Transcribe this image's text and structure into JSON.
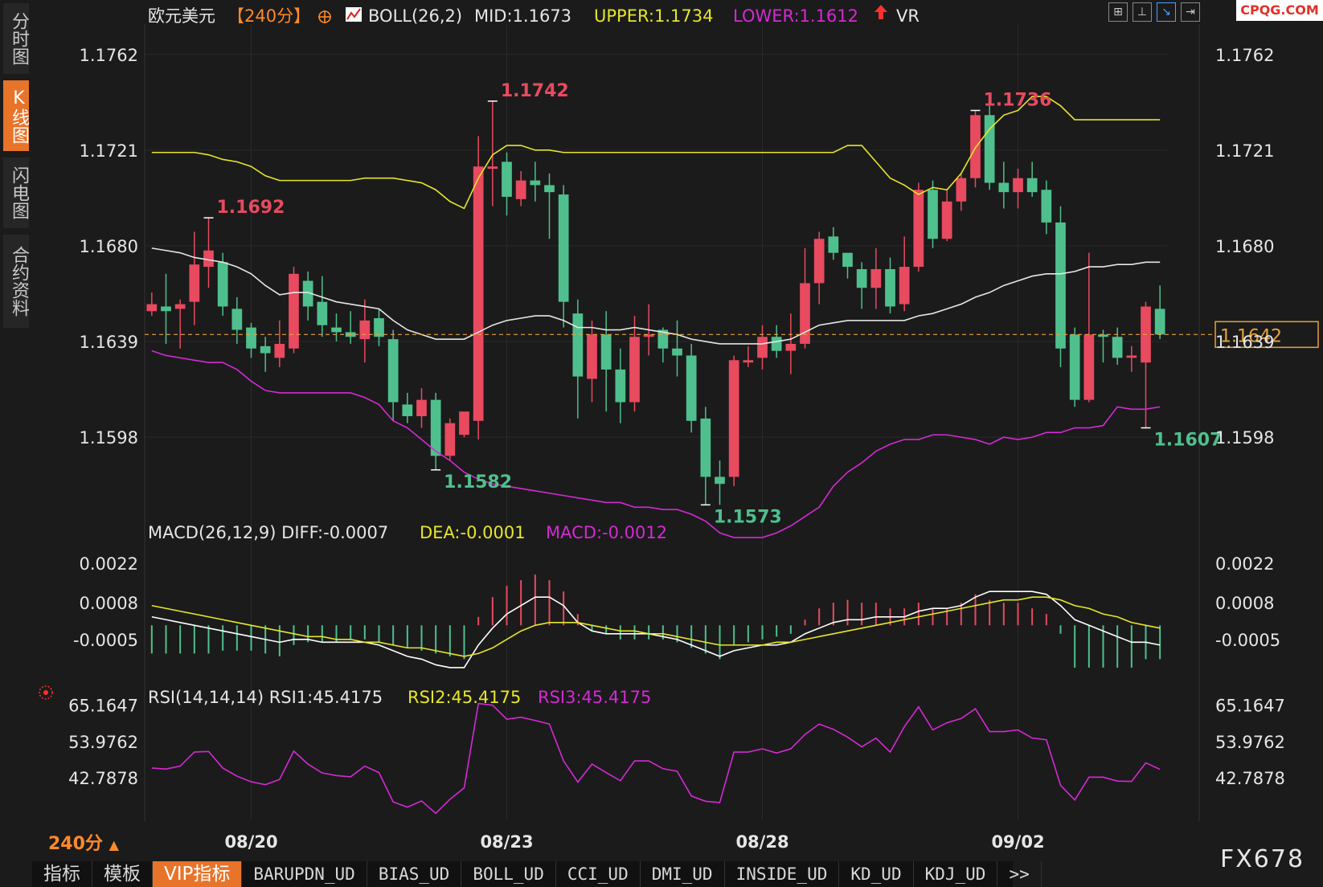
{
  "sidebar": {
    "items": [
      {
        "label": "分时图",
        "active": false
      },
      {
        "label": "K线图",
        "active": true
      },
      {
        "label": "闪电图",
        "active": false
      },
      {
        "label": "合约资料",
        "active": false
      }
    ]
  },
  "header": {
    "symbol": "欧元美元",
    "period": "【240分】",
    "boll": "BOLL(26,2)",
    "mid": "MID:1.1673",
    "upper": "UPPER:1.1734",
    "lower": "LOWER:1.1612",
    "vr": "VR"
  },
  "logo": "CPQG.COM",
  "watermark": "FX678",
  "period_footer": "240分",
  "tabs": [
    "指标",
    "模板",
    "VIP指标",
    "BARUPDN_UD",
    "BIAS_UD",
    "BOLL_UD",
    "CCI_UD",
    "DMI_UD",
    "INSIDE_UD",
    "KD_UD",
    "KDJ_UD",
    ">>"
  ],
  "colors": {
    "up": "#e84a5f",
    "down": "#4fc08d",
    "mid": "#e6e6e6",
    "upper": "#e6e62a",
    "lower": "#d42ad4",
    "accent": "#e8742a"
  },
  "chart_data": [
    {
      "type": "candlestick",
      "title": "",
      "yticks": [
        "1.1762",
        "1.1721",
        "1.1680",
        "1.1639",
        "1.1598"
      ],
      "ylim": [
        1.1565,
        1.1775
      ],
      "xticks": [
        "08/20",
        "08/23",
        "08/28",
        "09/02"
      ],
      "current_price": "1.1642",
      "annotations": [
        {
          "label": "1.1692",
          "color": "up"
        },
        {
          "label": "1.1742",
          "color": "up"
        },
        {
          "label": "1.1582",
          "color": "down"
        },
        {
          "label": "1.1573",
          "color": "down"
        },
        {
          "label": "1.1736",
          "color": "up"
        },
        {
          "label": "1.1607",
          "color": "down"
        }
      ],
      "candles": [
        [
          1.1652,
          1.1655,
          1.166,
          1.165
        ],
        [
          1.1654,
          1.1652,
          1.1668,
          1.1638
        ],
        [
          1.1653,
          1.1655,
          1.1657,
          1.1636
        ],
        [
          1.1656,
          1.1672,
          1.1686,
          1.1646
        ],
        [
          1.1671,
          1.1678,
          1.1692,
          1.1662
        ],
        [
          1.1673,
          1.1654,
          1.1677,
          1.165
        ],
        [
          1.1653,
          1.1644,
          1.1658,
          1.1638
        ],
        [
          1.1645,
          1.1636,
          1.1647,
          1.1632
        ],
        [
          1.1637,
          1.1634,
          1.1641,
          1.1626
        ],
        [
          1.1632,
          1.1638,
          1.1648,
          1.1628
        ],
        [
          1.1636,
          1.1668,
          1.1671,
          1.1634
        ],
        [
          1.1665,
          1.1654,
          1.1669,
          1.1648
        ],
        [
          1.1656,
          1.1646,
          1.1667,
          1.1641
        ],
        [
          1.1645,
          1.1643,
          1.1651,
          1.1639
        ],
        [
          1.1643,
          1.1641,
          1.1652,
          1.1638
        ],
        [
          1.164,
          1.1648,
          1.1657,
          1.163
        ],
        [
          1.1649,
          1.1641,
          1.1653,
          1.1637
        ],
        [
          1.164,
          1.1613,
          1.1644,
          1.1605
        ],
        [
          1.1612,
          1.1607,
          1.1617,
          1.1604
        ],
        [
          1.1607,
          1.1614,
          1.1619,
          1.1602
        ],
        [
          1.1614,
          1.159,
          1.1617,
          1.1584
        ],
        [
          1.159,
          1.1604,
          1.1606,
          1.1588
        ],
        [
          1.1599,
          1.1609,
          1.1608,
          1.1598
        ],
        [
          1.1605,
          1.1714,
          1.1727,
          1.1597
        ],
        [
          1.1713,
          1.1714,
          1.1742,
          1.1697
        ],
        [
          1.1716,
          1.1701,
          1.172,
          1.1693
        ],
        [
          1.17,
          1.1708,
          1.1712,
          1.1697
        ],
        [
          1.1708,
          1.1706,
          1.1716,
          1.1699
        ],
        [
          1.1706,
          1.1703,
          1.1711,
          1.1683
        ],
        [
          1.1702,
          1.1656,
          1.1706,
          1.1645
        ],
        [
          1.1651,
          1.1624,
          1.1657,
          1.1606
        ],
        [
          1.1623,
          1.1642,
          1.1648,
          1.1613
        ],
        [
          1.1642,
          1.1627,
          1.1652,
          1.1609
        ],
        [
          1.1627,
          1.1613,
          1.1636,
          1.1604
        ],
        [
          1.1613,
          1.1641,
          1.165,
          1.1609
        ],
        [
          1.1641,
          1.1642,
          1.1655,
          1.1633
        ],
        [
          1.1644,
          1.1636,
          1.1645,
          1.163
        ],
        [
          1.1636,
          1.1633,
          1.1648,
          1.1624
        ],
        [
          1.1633,
          1.1605,
          1.1638,
          1.16
        ],
        [
          1.1606,
          1.1581,
          1.1611,
          1.1569
        ],
        [
          1.1581,
          1.1578,
          1.1588,
          1.1569
        ],
        [
          1.1581,
          1.1631,
          1.1633,
          1.1577
        ],
        [
          1.163,
          1.1631,
          1.1637,
          1.1628
        ],
        [
          1.1632,
          1.1641,
          1.1646,
          1.1627
        ],
        [
          1.1641,
          1.1635,
          1.1646,
          1.1632
        ],
        [
          1.1635,
          1.1638,
          1.1651,
          1.1625
        ],
        [
          1.1638,
          1.1664,
          1.1679,
          1.1636
        ],
        [
          1.1664,
          1.1683,
          1.1686,
          1.1655
        ],
        [
          1.1684,
          1.1677,
          1.1688,
          1.1674
        ],
        [
          1.1677,
          1.1671,
          1.1676,
          1.1666
        ],
        [
          1.167,
          1.1662,
          1.1673,
          1.1653
        ],
        [
          1.1662,
          1.167,
          1.1679,
          1.1653
        ],
        [
          1.167,
          1.1654,
          1.1675,
          1.1651
        ],
        [
          1.1655,
          1.1671,
          1.1684,
          1.1652
        ],
        [
          1.1671,
          1.1704,
          1.1707,
          1.1669
        ],
        [
          1.1704,
          1.1683,
          1.1708,
          1.1679
        ],
        [
          1.1683,
          1.1699,
          1.1704,
          1.1682
        ],
        [
          1.1699,
          1.1709,
          1.1711,
          1.1695
        ],
        [
          1.1709,
          1.1736,
          1.1738,
          1.1705
        ],
        [
          1.1736,
          1.1707,
          1.174,
          1.1704
        ],
        [
          1.1707,
          1.1703,
          1.1716,
          1.1696
        ],
        [
          1.1703,
          1.1709,
          1.1713,
          1.1696
        ],
        [
          1.1709,
          1.1703,
          1.1716,
          1.1701
        ],
        [
          1.1704,
          1.169,
          1.1708,
          1.1685
        ],
        [
          1.169,
          1.1636,
          1.1697,
          1.1628
        ],
        [
          1.1642,
          1.1614,
          1.1645,
          1.1611
        ],
        [
          1.1614,
          1.1642,
          1.1677,
          1.1613
        ],
        [
          1.1642,
          1.1641,
          1.1644,
          1.163
        ],
        [
          1.1641,
          1.1632,
          1.1645,
          1.1629
        ],
        [
          1.1632,
          1.1633,
          1.1637,
          1.1626
        ],
        [
          1.163,
          1.1654,
          1.1656,
          1.1602
        ],
        [
          1.1653,
          1.1642,
          1.1663,
          1.164
        ]
      ],
      "mid_line": [
        1.1679,
        1.1678,
        1.1677,
        1.1675,
        1.1674,
        1.1673,
        1.1671,
        1.1668,
        1.1663,
        1.1659,
        1.166,
        1.166,
        1.1658,
        1.1656,
        1.1655,
        1.1654,
        1.1653,
        1.1648,
        1.1644,
        1.1642,
        1.164,
        1.164,
        1.164,
        1.1643,
        1.1646,
        1.1648,
        1.1649,
        1.165,
        1.165,
        1.1648,
        1.1645,
        1.1645,
        1.1644,
        1.1644,
        1.1645,
        1.1644,
        1.1643,
        1.1642,
        1.164,
        1.1639,
        1.1638,
        1.1638,
        1.1638,
        1.1638,
        1.1639,
        1.164,
        1.1643,
        1.1646,
        1.1647,
        1.1648,
        1.1648,
        1.1648,
        1.1648,
        1.1648,
        1.165,
        1.1651,
        1.1653,
        1.1655,
        1.1658,
        1.166,
        1.1663,
        1.1665,
        1.1667,
        1.1668,
        1.1668,
        1.1669,
        1.1671,
        1.1671,
        1.1672,
        1.1672,
        1.1673,
        1.1673
      ],
      "upper_line": [
        1.172,
        1.172,
        1.172,
        1.172,
        1.1719,
        1.1717,
        1.1716,
        1.1714,
        1.171,
        1.1708,
        1.1708,
        1.1708,
        1.1708,
        1.1708,
        1.1708,
        1.1709,
        1.1709,
        1.1709,
        1.1708,
        1.1707,
        1.1704,
        1.1699,
        1.1696,
        1.1709,
        1.1719,
        1.1723,
        1.1723,
        1.1721,
        1.1721,
        1.172,
        1.172,
        1.172,
        1.172,
        1.172,
        1.172,
        1.172,
        1.172,
        1.172,
        1.172,
        1.172,
        1.172,
        1.172,
        1.172,
        1.172,
        1.172,
        1.172,
        1.172,
        1.172,
        1.172,
        1.1723,
        1.1723,
        1.1716,
        1.1709,
        1.1706,
        1.1702,
        1.1705,
        1.1704,
        1.1711,
        1.1722,
        1.173,
        1.1736,
        1.1738,
        1.1744,
        1.1744,
        1.174,
        1.1734,
        1.1734,
        1.1734,
        1.1734,
        1.1734,
        1.1734,
        1.1734
      ],
      "lower_line": [
        1.1635,
        1.1633,
        1.1632,
        1.1631,
        1.163,
        1.163,
        1.1627,
        1.1622,
        1.1618,
        1.1617,
        1.1617,
        1.1617,
        1.1617,
        1.1617,
        1.1617,
        1.1615,
        1.1612,
        1.1605,
        1.1602,
        1.1597,
        1.1592,
        1.1588,
        1.1583,
        1.158,
        1.1578,
        1.1577,
        1.1576,
        1.1575,
        1.1574,
        1.1573,
        1.1572,
        1.1571,
        1.157,
        1.157,
        1.1568,
        1.1568,
        1.1567,
        1.1567,
        1.1565,
        1.1562,
        1.1557,
        1.1555,
        1.1555,
        1.1555,
        1.1557,
        1.156,
        1.1564,
        1.1568,
        1.1577,
        1.1583,
        1.1587,
        1.1592,
        1.1595,
        1.1597,
        1.1597,
        1.1599,
        1.1599,
        1.1598,
        1.1597,
        1.1595,
        1.1598,
        1.1597,
        1.1598,
        1.16,
        1.16,
        1.1602,
        1.1602,
        1.1603,
        1.1611,
        1.161,
        1.161,
        1.1611
      ]
    },
    {
      "type": "bar",
      "title": "MACD(26,12,9) DIFF:-0.0007",
      "dea_label": "DEA:-0.0001",
      "macd_label": "MACD:-0.0012",
      "yticks": [
        "0.0022",
        "0.0008",
        "-0.0005"
      ],
      "ylim": [
        -0.0019,
        0.0028
      ],
      "macd_bars": [
        -0.001,
        -0.001,
        -0.001,
        -0.001,
        -0.001,
        -0.0009,
        -0.0009,
        -0.0009,
        -0.001,
        -0.0011,
        -0.0007,
        -0.0006,
        -0.0006,
        -0.0006,
        -0.0005,
        -0.0005,
        -0.0006,
        -0.0007,
        -0.0008,
        -0.0009,
        -0.001,
        -0.0011,
        -0.0012,
        0.0003,
        0.001,
        0.0014,
        0.0016,
        0.0018,
        0.0016,
        0.0012,
        0.0004,
        -0.0002,
        -0.0003,
        -0.0005,
        -0.0005,
        -0.0005,
        -0.0005,
        -0.0006,
        -0.0008,
        -0.001,
        -0.0012,
        -0.0007,
        -0.0006,
        -0.0005,
        -0.0004,
        -0.0003,
        0.0002,
        0.0006,
        0.0008,
        0.0009,
        0.0008,
        0.0008,
        0.0006,
        0.0006,
        0.0008,
        0.0006,
        0.0006,
        0.0008,
        0.0011,
        0.0009,
        0.0008,
        0.0008,
        0.0006,
        0.0004,
        -0.0003,
        -0.0015,
        -0.0015,
        -0.0015,
        -0.0015,
        -0.0015,
        -0.0012,
        -0.0012
      ],
      "diff": [
        0.0003,
        0.0002,
        0.0001,
        0.0,
        -0.0001,
        -0.0002,
        -0.0003,
        -0.0004,
        -0.0005,
        -0.0006,
        -0.0005,
        -0.0005,
        -0.0006,
        -0.0006,
        -0.0006,
        -0.0006,
        -0.0007,
        -0.0009,
        -0.0011,
        -0.0012,
        -0.0014,
        -0.0015,
        -0.0015,
        -0.0007,
        -0.0001,
        0.0004,
        0.0007,
        0.001,
        0.001,
        0.0007,
        0.0001,
        -0.0002,
        -0.0003,
        -0.0003,
        -0.0003,
        -0.0003,
        -0.0004,
        -0.0005,
        -0.0007,
        -0.0009,
        -0.0011,
        -0.0009,
        -0.0008,
        -0.0007,
        -0.0007,
        -0.0006,
        -0.0003,
        -0.0001,
        0.0001,
        0.0002,
        0.0002,
        0.0003,
        0.0003,
        0.0003,
        0.0005,
        0.0006,
        0.0006,
        0.0007,
        0.001,
        0.0012,
        0.0012,
        0.0012,
        0.0012,
        0.0011,
        0.0007,
        0.0002,
        0.0,
        -0.0002,
        -0.0004,
        -0.0006,
        -0.0006,
        -0.0007
      ],
      "dea": [
        0.0007,
        0.0006,
        0.0005,
        0.0004,
        0.0003,
        0.0002,
        0.0001,
        0.0,
        -0.0001,
        -0.0002,
        -0.0003,
        -0.0004,
        -0.0004,
        -0.0005,
        -0.0005,
        -0.0006,
        -0.0006,
        -0.0007,
        -0.0008,
        -0.0008,
        -0.0009,
        -0.001,
        -0.0011,
        -0.001,
        -0.0008,
        -0.0005,
        -0.0002,
        0.0,
        0.0001,
        0.0001,
        0.0001,
        0.0,
        -0.0001,
        -0.0002,
        -0.0002,
        -0.0003,
        -0.0003,
        -0.0004,
        -0.0005,
        -0.0006,
        -0.0007,
        -0.0007,
        -0.0007,
        -0.0007,
        -0.0006,
        -0.0006,
        -0.0005,
        -0.0004,
        -0.0003,
        -0.0002,
        -0.0001,
        0.0,
        0.0001,
        0.0002,
        0.0003,
        0.0004,
        0.0005,
        0.0006,
        0.0007,
        0.0008,
        0.0009,
        0.0009,
        0.001,
        0.001,
        0.0009,
        0.0007,
        0.0006,
        0.0004,
        0.0003,
        0.0001,
        0.0,
        -0.0001
      ]
    },
    {
      "type": "line",
      "title": "RSI(14,14,14) RSI1:45.4175",
      "rsi2_label": "RSI2:45.4175",
      "rsi3_label": "RSI3:45.4175",
      "yticks": [
        "65.1647",
        "53.9762",
        "42.7878"
      ],
      "ylim": [
        30,
        67
      ],
      "rsi": [
        45.8,
        45.5,
        46.4,
        50.7,
        50.9,
        45.8,
        43.3,
        41.6,
        40.7,
        42.3,
        51.0,
        47.0,
        44.3,
        43.5,
        43.1,
        46.4,
        44.4,
        35.4,
        33.8,
        35.7,
        31.9,
        36.2,
        39.7,
        65.6,
        65.1,
        60.8,
        61.4,
        60.4,
        59.3,
        48.0,
        41.5,
        47.0,
        44.4,
        41.9,
        48.0,
        48.0,
        45.6,
        44.8,
        37.2,
        35.6,
        35.2,
        50.7,
        50.7,
        51.7,
        50.4,
        51.7,
        56.1,
        59.3,
        57.7,
        55.3,
        52.3,
        55.0,
        50.7,
        58.5,
        64.6,
        57.5,
        59.7,
        61.0,
        64.0,
        57.0,
        57.0,
        57.5,
        55.0,
        54.5,
        40.5,
        36.0,
        43.0,
        43.0,
        41.8,
        41.7,
        47.4,
        45.4
      ]
    }
  ]
}
